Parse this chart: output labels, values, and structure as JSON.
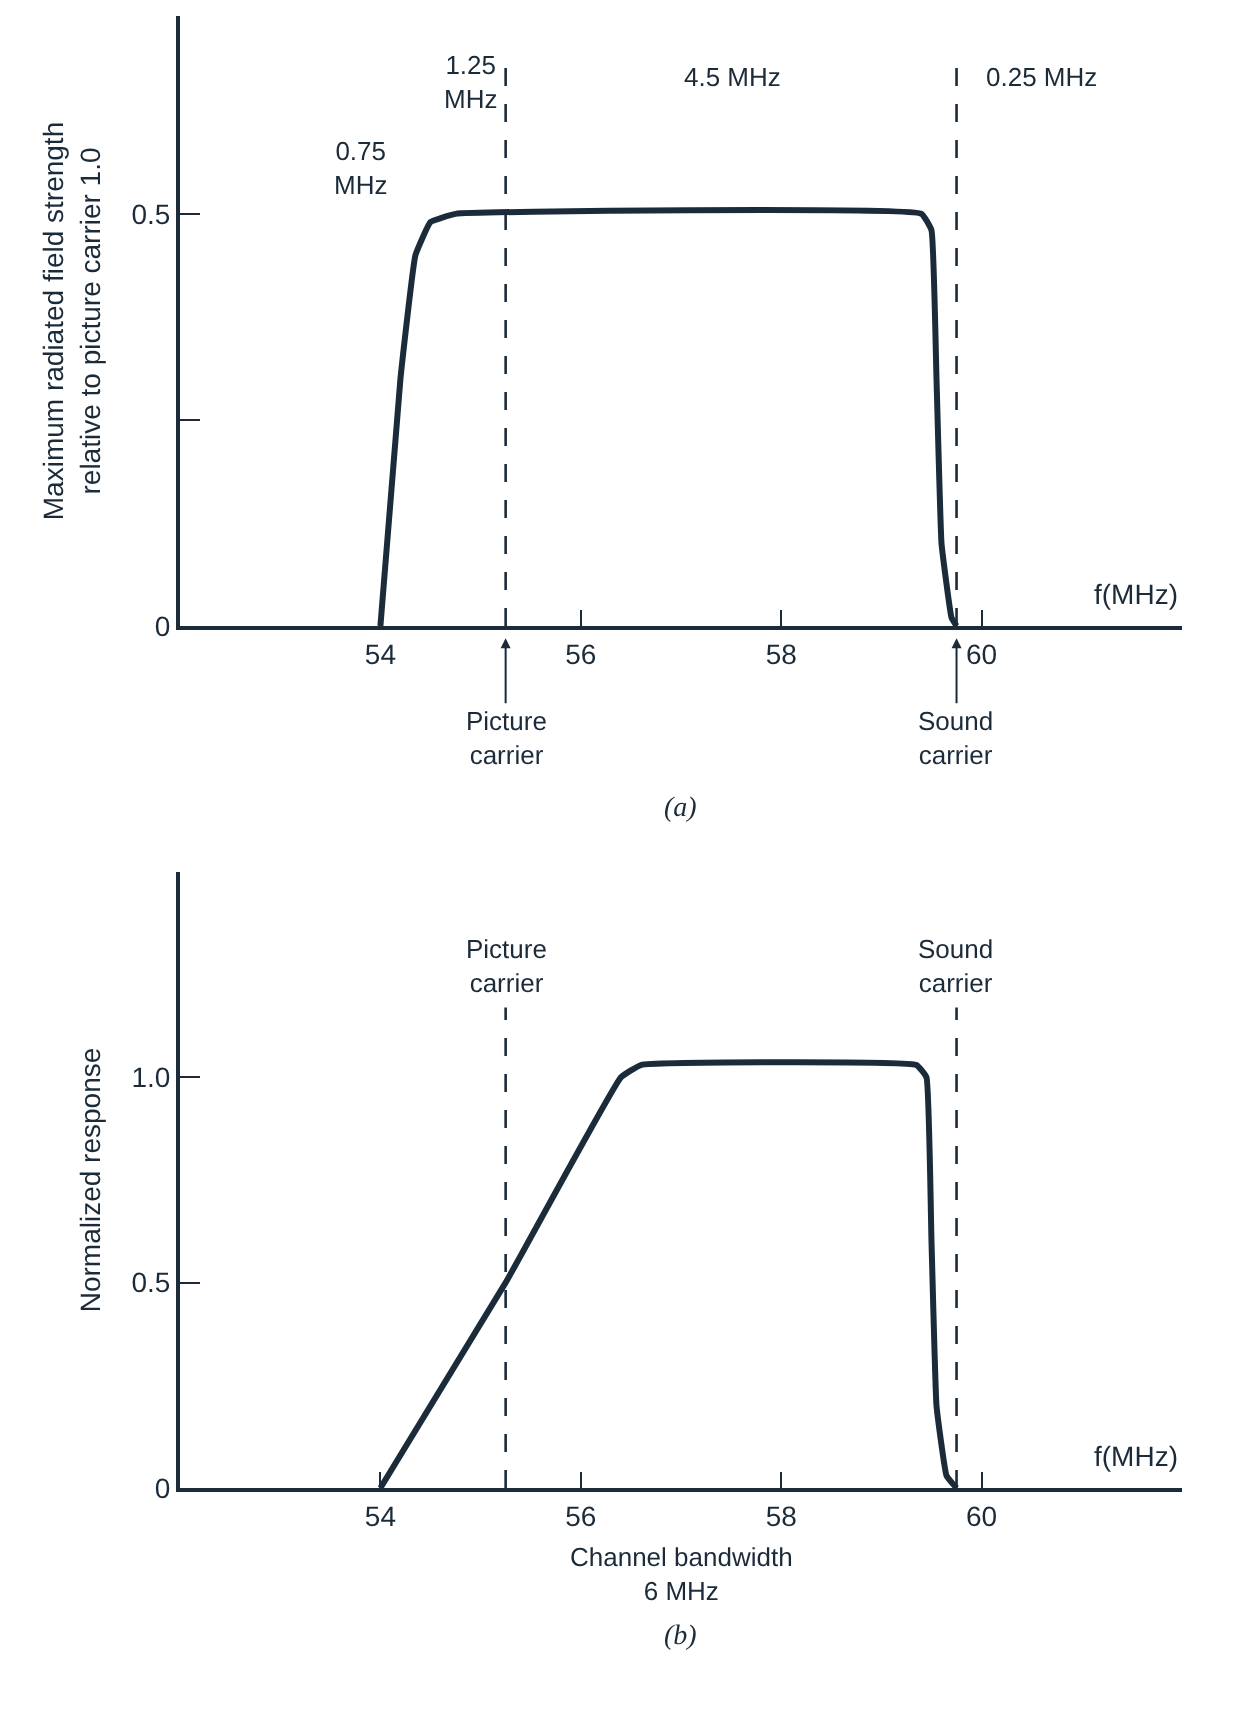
{
  "chart_data": [
    {
      "type": "line",
      "title": "(a)",
      "xlabel": "f(MHz)",
      "ylabel": "Maximum radiated field strength\nrelative to picture carrier 1.0",
      "color": "#1c2b3a",
      "line_style": "solid",
      "marker": "none",
      "x": [
        54,
        54.2,
        54.35,
        54.5,
        54.75,
        59.4,
        59.5,
        59.55,
        59.6,
        59.7,
        59.75
      ],
      "values": [
        0,
        0.3,
        0.45,
        0.49,
        0.5,
        0.5,
        0.48,
        0.3,
        0.1,
        0.01,
        0
      ],
      "xlim": [
        52,
        62
      ],
      "xticks": [
        54,
        56,
        58,
        60
      ],
      "ylim": [
        0,
        0.74
      ],
      "yticks": [
        0,
        {
          "value": 0.25,
          "label": null
        },
        0.5
      ],
      "ref_lines": [
        {
          "axis": "x",
          "value": 55.25,
          "label": "Picture\ncarrier",
          "line_style": "dashed"
        },
        {
          "axis": "x",
          "value": 59.75,
          "label": "Sound\ncarrier",
          "line_style": "dashed"
        }
      ],
      "annotations": [
        "0.75\nMHz",
        "1.25\nMHz",
        "4.5 MHz",
        "0.25 MHz"
      ]
    },
    {
      "type": "line",
      "title": "(b)",
      "xlabel": "f(MHz)",
      "ylabel": "Normalized response",
      "color": "#1c2b3a",
      "line_style": "solid",
      "marker": "none",
      "x": [
        54,
        55.25,
        56.4,
        56.6,
        59.35,
        59.45,
        59.5,
        59.55,
        59.65,
        59.75
      ],
      "values": [
        0,
        0.5,
        1.0,
        1.03,
        1.03,
        1.0,
        0.6,
        0.2,
        0.03,
        0
      ],
      "xlim": [
        52,
        62
      ],
      "xticks": [
        54,
        56,
        58,
        60
      ],
      "ylim": [
        0,
        1.5
      ],
      "yticks": [
        0,
        0.5,
        {
          "value": 1,
          "label": "1.0"
        }
      ],
      "ref_lines": [
        {
          "axis": "x",
          "value": 55.25,
          "label": "Picture\ncarrier",
          "line_style": "dashed"
        },
        {
          "axis": "x",
          "value": 59.75,
          "label": "Sound\ncarrier",
          "line_style": "dashed"
        }
      ],
      "annotations": [
        "Channel bandwidth\n6 MHz"
      ]
    }
  ]
}
